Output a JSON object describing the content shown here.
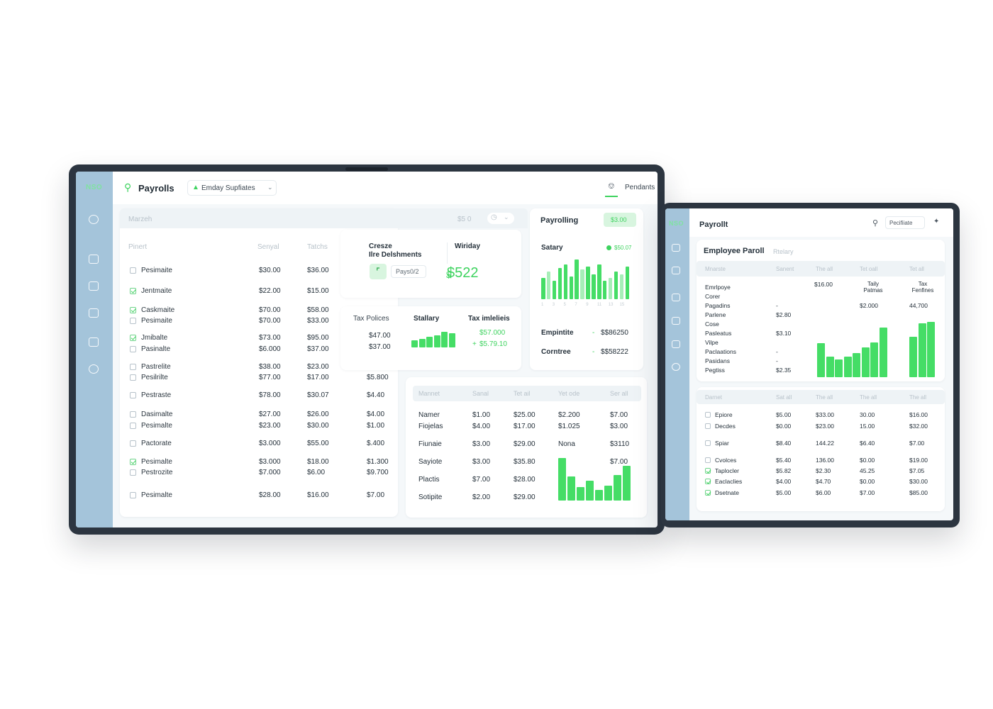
{
  "colors": {
    "accent": "#3ed35f",
    "sidebar": "#a4c4da",
    "bezel": "#2c3540"
  },
  "left": {
    "logo": "NSO",
    "header": {
      "title": "Payrolls",
      "dropdown": "Emday Supfiates",
      "notifications": "Pendants"
    },
    "search_placeholder": "Marzeh",
    "search_value": "$5 0",
    "table": {
      "headers": [
        "Pinert",
        "Senyal",
        "Tatchs"
      ],
      "rows": [
        {
          "name": "Pesimaite",
          "checked": false,
          "a": "$30.00",
          "b": "$36.00",
          "c": ""
        },
        {
          "name": "Jentmaite",
          "checked": true,
          "a": "$22.00",
          "b": "$15.00",
          "c": ""
        },
        {
          "name": "Caskmaite",
          "checked": true,
          "a": "$70.00",
          "b": "$58.00",
          "c": ""
        },
        {
          "name": "Pesimaite",
          "checked": false,
          "a": "$70.00",
          "b": "$33.00",
          "c": ""
        },
        {
          "name": "Jmibalte",
          "checked": true,
          "a": "$73.00",
          "b": "$95.00",
          "c": ""
        },
        {
          "name": "Pasinalte",
          "checked": false,
          "a": "$6.000",
          "b": "$37.00",
          "c": ""
        },
        {
          "name": "Pastrelite",
          "checked": false,
          "a": "$38.00",
          "b": "$23.00",
          "c": "-"
        },
        {
          "name": "Pesilrilte",
          "checked": false,
          "a": "$77.00",
          "b": "$17.00",
          "c": "$5.800"
        },
        {
          "name": "Pestraste",
          "checked": false,
          "a": "$78.00",
          "b": "$30.07",
          "c": "$4.40"
        },
        {
          "name": "Dasimalte",
          "checked": false,
          "a": "$27.00",
          "b": "$26.00",
          "c": "$4.00"
        },
        {
          "name": "Pesimalte",
          "checked": false,
          "a": "$23.00",
          "b": "$30.00",
          "c": "$1.00"
        },
        {
          "name": "Pactorate",
          "checked": false,
          "a": "$3.000",
          "b": "$55.00",
          "c": "$.400"
        },
        {
          "name": "Pesimalte",
          "checked": true,
          "a": "$3.000",
          "b": "$18.00",
          "c": "$1.300"
        },
        {
          "name": "Pestrozite",
          "checked": false,
          "a": "$7.000",
          "b": "$6.00",
          "c": "$9.700"
        },
        {
          "name": "Pesimalte",
          "checked": false,
          "a": "$28.00",
          "b": "$16.00",
          "c": "$7.00"
        }
      ]
    },
    "create_card": {
      "title_l1": "Cresze",
      "title_l2": "Ilre Delshments",
      "button": "Pays0/2",
      "weekday_label": "Wiriday",
      "amount": "$522",
      "currency": "$"
    },
    "tax_card": {
      "label": "Tax Polices",
      "v1": "$47.00",
      "v2": "$37.00",
      "salary_label": "Stallary",
      "tax_label": "Tax imlelieis",
      "g1": "$57.000",
      "g2": "$5.79.10"
    },
    "payroll_card": {
      "title": "Payrolling",
      "badge": "$3.00",
      "salary_label": "Satary",
      "legend": "$50.07",
      "emp_label": "Empintite",
      "emp_value": "$$86250",
      "cont_label": "Corntree",
      "cont_value": "$$58222"
    },
    "bottom_table": {
      "headers": [
        "Mannet",
        "Sanal",
        "Tet ail",
        "Yet ode",
        "Ser all"
      ],
      "rows": [
        [
          "Namer",
          "$1.00",
          "$25.00",
          "$2.200",
          "$7.00"
        ],
        [
          "Fiojelas",
          "$4.00",
          "$17.00",
          "$1.025",
          "$3.00"
        ],
        [
          "Fiunaie",
          "$3.00",
          "$29.00",
          "Nona",
          "$3110"
        ],
        [
          "Sayiote",
          "$3.00",
          "$35.80",
          "",
          "$7.00"
        ],
        [
          "Plactis",
          "$7.00",
          "$28.00",
          "",
          ""
        ],
        [
          "Sotipite",
          "$2.00",
          "$29.00",
          "",
          ""
        ]
      ]
    }
  },
  "chart_data": [
    {
      "type": "bar",
      "title": "Satary",
      "categories": [
        "1",
        "2",
        "3",
        "4",
        "5",
        "6",
        "7",
        "8",
        "9",
        "10",
        "11",
        "12",
        "13",
        "14",
        "15",
        "16"
      ],
      "values": [
        26,
        34,
        22,
        38,
        42,
        28,
        48,
        36,
        40,
        30,
        42,
        22,
        26,
        34,
        30,
        40
      ],
      "ylim": [
        0,
        50
      ]
    },
    {
      "type": "bar",
      "title": "Stallary",
      "values": [
        8,
        10,
        12,
        14,
        18,
        16
      ]
    },
    {
      "type": "bar",
      "title": "",
      "values": [
        64,
        36,
        20,
        30,
        16,
        22,
        38,
        52
      ],
      "ylim": [
        0,
        70
      ]
    },
    {
      "type": "bar",
      "title": "",
      "values": [
        50,
        30,
        26,
        30,
        36,
        44,
        52,
        74
      ],
      "ylim": [
        0,
        80
      ]
    },
    {
      "type": "bar",
      "title": "",
      "values": [
        56,
        74,
        76
      ],
      "ylim": [
        0,
        80
      ]
    }
  ],
  "right": {
    "logo": "NSO",
    "title": "Payrollt",
    "profile": "Pecifiiate",
    "card_title": "Employee Paroll",
    "card_sub": "Rtelary",
    "headers1": [
      "Mnarste",
      "Sanent",
      "The all",
      "Tet oall",
      "Tet all"
    ],
    "labels": [
      "Emrlpoye",
      "Corer",
      "Pagadins",
      "Parlene",
      "Cose",
      "Pasleatus",
      "Vilpe",
      "Paclaations",
      "Pasidans",
      "Pegtiss"
    ],
    "vals_left": [
      "",
      "",
      "-",
      "$2.80",
      "",
      "$3.10",
      "",
      "-",
      "-",
      "$2.35"
    ],
    "top_cols": [
      {
        "value": "$16.00",
        "label": ""
      },
      {
        "value": "$2.000",
        "label": "Taily Patmas"
      },
      {
        "value": "44,700",
        "label": "Tax Fenfines"
      }
    ],
    "headers2": [
      "Darnet",
      "Sat all",
      "The all",
      "The all",
      "The all"
    ],
    "rows": [
      {
        "name": "Epiore",
        "checked": false,
        "v": [
          "$5.00",
          "$33.00",
          "30.00",
          "$16.00"
        ]
      },
      {
        "name": "Decdes",
        "checked": false,
        "v": [
          "$0.00",
          "$23.00",
          "15.00",
          "$32.00"
        ]
      },
      {
        "name": "Spiar",
        "checked": false,
        "v": [
          "$8.40",
          "144.22",
          "$6.40",
          "$7.00"
        ]
      },
      {
        "name": "Cvolces",
        "checked": false,
        "v": [
          "$5.40",
          "136.00",
          "$0.00",
          "$19.00"
        ]
      },
      {
        "name": "Taplocler",
        "checked": true,
        "v": [
          "$5.82",
          "$2.30",
          "45.25",
          "$7.05"
        ]
      },
      {
        "name": "Eaclaclies",
        "checked": true,
        "v": [
          "$4.00",
          "$4.70",
          "$0.00",
          "$30.00"
        ]
      },
      {
        "name": "Dsetnate",
        "checked": true,
        "v": [
          "$5.00",
          "$6.00",
          "$7.00",
          "$85.00"
        ]
      }
    ]
  }
}
